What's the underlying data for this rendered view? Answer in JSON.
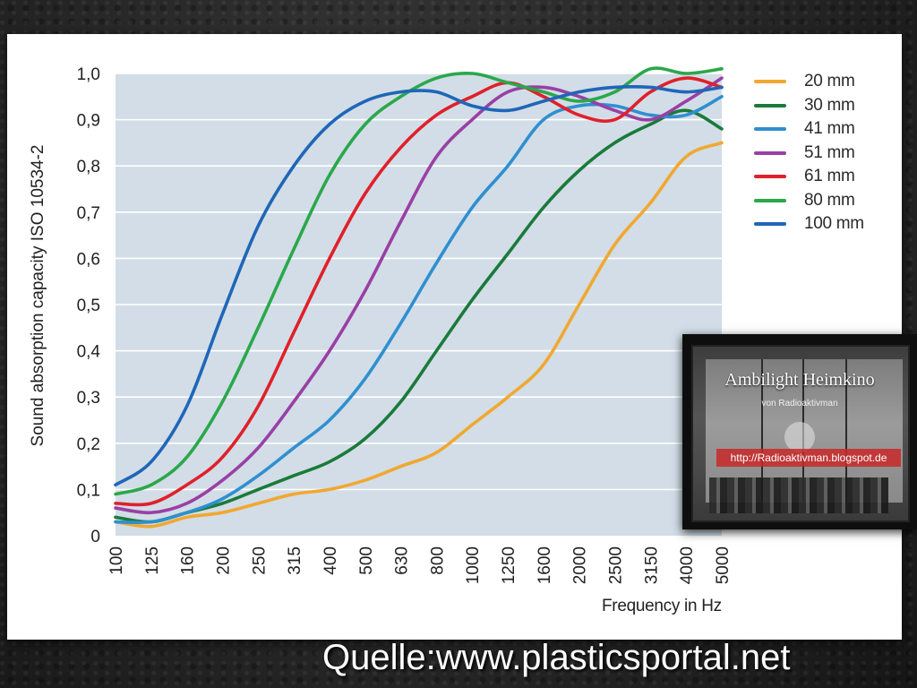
{
  "chart_data": {
    "type": "line",
    "title": "",
    "xlabel": "Frequency in Hz",
    "ylabel": "Sound absorption capacity ISO 10534-2",
    "categories": [
      "100",
      "125",
      "160",
      "200",
      "250",
      "315",
      "400",
      "500",
      "630",
      "800",
      "1000",
      "1250",
      "1600",
      "2000",
      "2500",
      "3150",
      "4000",
      "5000"
    ],
    "yticks": [
      "0",
      "0,1",
      "0,2",
      "0,3",
      "0,4",
      "0,5",
      "0,6",
      "0,7",
      "0,8",
      "0,9",
      "1,0"
    ],
    "ylim": [
      0,
      1.0
    ],
    "grid": true,
    "legend_position": "top-right",
    "series": [
      {
        "name": "20 mm",
        "color": "#f0a830",
        "values": [
          0.03,
          0.02,
          0.04,
          0.05,
          0.07,
          0.09,
          0.1,
          0.12,
          0.15,
          0.18,
          0.24,
          0.3,
          0.37,
          0.5,
          0.63,
          0.72,
          0.82,
          0.85
        ]
      },
      {
        "name": "30 mm",
        "color": "#1a7a3a",
        "values": [
          0.04,
          0.03,
          0.05,
          0.07,
          0.1,
          0.13,
          0.16,
          0.21,
          0.29,
          0.4,
          0.51,
          0.61,
          0.71,
          0.79,
          0.85,
          0.89,
          0.92,
          0.88
        ]
      },
      {
        "name": "41 mm",
        "color": "#2f8fd0",
        "values": [
          0.03,
          0.03,
          0.05,
          0.08,
          0.13,
          0.19,
          0.25,
          0.34,
          0.46,
          0.59,
          0.71,
          0.8,
          0.9,
          0.93,
          0.93,
          0.91,
          0.91,
          0.95
        ]
      },
      {
        "name": "51 mm",
        "color": "#9a3fa5",
        "values": [
          0.06,
          0.05,
          0.07,
          0.12,
          0.19,
          0.29,
          0.4,
          0.53,
          0.68,
          0.82,
          0.9,
          0.96,
          0.97,
          0.95,
          0.92,
          0.9,
          0.94,
          0.99
        ]
      },
      {
        "name": "61 mm",
        "color": "#e0202a",
        "values": [
          0.07,
          0.07,
          0.11,
          0.17,
          0.28,
          0.44,
          0.6,
          0.74,
          0.84,
          0.91,
          0.95,
          0.98,
          0.95,
          0.91,
          0.9,
          0.96,
          0.99,
          0.97
        ]
      },
      {
        "name": "80 mm",
        "color": "#2aa84a",
        "values": [
          0.09,
          0.11,
          0.17,
          0.29,
          0.45,
          0.62,
          0.78,
          0.89,
          0.95,
          0.99,
          1.0,
          0.98,
          0.96,
          0.94,
          0.96,
          1.01,
          1.0,
          1.01
        ]
      },
      {
        "name": "100 mm",
        "color": "#1f66b8",
        "values": [
          0.11,
          0.16,
          0.28,
          0.48,
          0.67,
          0.8,
          0.89,
          0.94,
          0.96,
          0.96,
          0.93,
          0.92,
          0.94,
          0.96,
          0.97,
          0.97,
          0.96,
          0.97
        ]
      }
    ]
  },
  "inset": {
    "title": "Ambilight Heimkino",
    "subtitle": "von Radioaktivman",
    "url": "http://Radioaktivman.blogspot.de"
  },
  "source_caption": "Quelle:www.plasticsportal.net"
}
